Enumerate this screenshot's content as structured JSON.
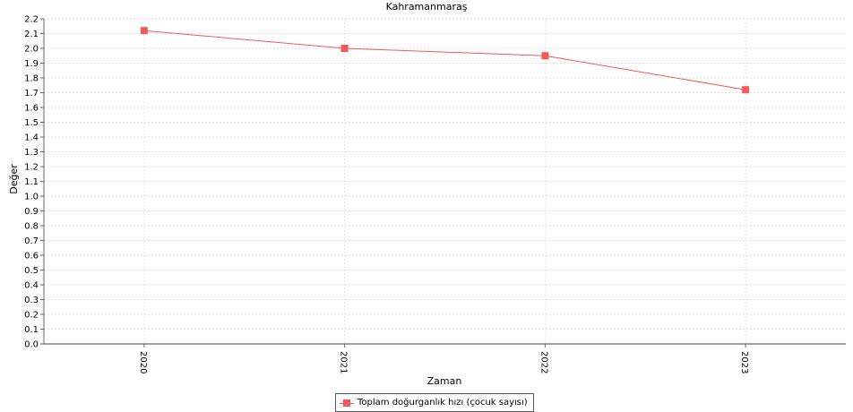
{
  "chart_data": {
    "type": "line",
    "title": "Kahramanmaraş",
    "xlabel": "Zaman",
    "ylabel": "Değer",
    "categories": [
      "2020",
      "2021",
      "2022",
      "2023"
    ],
    "series": [
      {
        "name": "Toplam doğurganlık hızı (çocuk sayısı)",
        "values": [
          2.12,
          2.0,
          1.95,
          1.72
        ],
        "color": "#f05a5a",
        "marker": "square"
      }
    ],
    "ylim": [
      0,
      2.2
    ],
    "ytick_step": 0.1,
    "ytick_labels": [
      "0.0",
      "0.1",
      "0.2",
      "0.3",
      "0.4",
      "0.5",
      "0.6",
      "0.7",
      "0.8",
      "0.9",
      "1.0",
      "1.1",
      "1.2",
      "1.3",
      "1.4",
      "1.5",
      "1.6",
      "1.7",
      "1.8",
      "1.9",
      "2.0",
      "2.1",
      "2.2"
    ],
    "grid": true,
    "legend_position": "bottom-center",
    "xtick_rotation": "vertical"
  }
}
